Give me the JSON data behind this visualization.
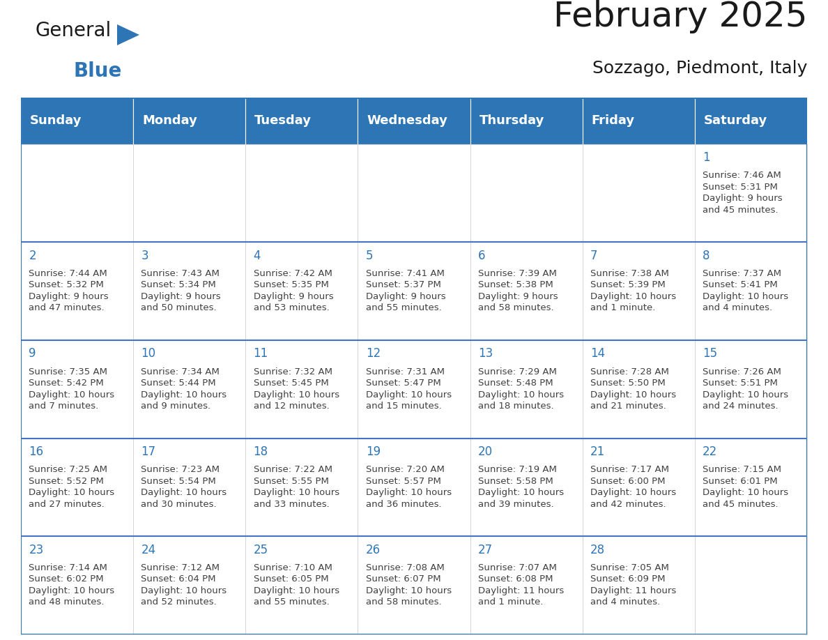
{
  "title": "February 2025",
  "subtitle": "Sozzago, Piedmont, Italy",
  "header_color": "#2E75B6",
  "header_text_color": "#FFFFFF",
  "cell_bg_color": "#FFFFFF",
  "cell_alt_bg_color": "#F2F2F2",
  "border_color": "#2E75B6",
  "row_divider_color": "#4472C4",
  "day_number_color": "#2E75B6",
  "cell_text_color": "#404040",
  "days_of_week": [
    "Sunday",
    "Monday",
    "Tuesday",
    "Wednesday",
    "Thursday",
    "Friday",
    "Saturday"
  ],
  "weeks": [
    [
      {
        "day": "",
        "info": ""
      },
      {
        "day": "",
        "info": ""
      },
      {
        "day": "",
        "info": ""
      },
      {
        "day": "",
        "info": ""
      },
      {
        "day": "",
        "info": ""
      },
      {
        "day": "",
        "info": ""
      },
      {
        "day": "1",
        "info": "Sunrise: 7:46 AM\nSunset: 5:31 PM\nDaylight: 9 hours\nand 45 minutes."
      }
    ],
    [
      {
        "day": "2",
        "info": "Sunrise: 7:44 AM\nSunset: 5:32 PM\nDaylight: 9 hours\nand 47 minutes."
      },
      {
        "day": "3",
        "info": "Sunrise: 7:43 AM\nSunset: 5:34 PM\nDaylight: 9 hours\nand 50 minutes."
      },
      {
        "day": "4",
        "info": "Sunrise: 7:42 AM\nSunset: 5:35 PM\nDaylight: 9 hours\nand 53 minutes."
      },
      {
        "day": "5",
        "info": "Sunrise: 7:41 AM\nSunset: 5:37 PM\nDaylight: 9 hours\nand 55 minutes."
      },
      {
        "day": "6",
        "info": "Sunrise: 7:39 AM\nSunset: 5:38 PM\nDaylight: 9 hours\nand 58 minutes."
      },
      {
        "day": "7",
        "info": "Sunrise: 7:38 AM\nSunset: 5:39 PM\nDaylight: 10 hours\nand 1 minute."
      },
      {
        "day": "8",
        "info": "Sunrise: 7:37 AM\nSunset: 5:41 PM\nDaylight: 10 hours\nand 4 minutes."
      }
    ],
    [
      {
        "day": "9",
        "info": "Sunrise: 7:35 AM\nSunset: 5:42 PM\nDaylight: 10 hours\nand 7 minutes."
      },
      {
        "day": "10",
        "info": "Sunrise: 7:34 AM\nSunset: 5:44 PM\nDaylight: 10 hours\nand 9 minutes."
      },
      {
        "day": "11",
        "info": "Sunrise: 7:32 AM\nSunset: 5:45 PM\nDaylight: 10 hours\nand 12 minutes."
      },
      {
        "day": "12",
        "info": "Sunrise: 7:31 AM\nSunset: 5:47 PM\nDaylight: 10 hours\nand 15 minutes."
      },
      {
        "day": "13",
        "info": "Sunrise: 7:29 AM\nSunset: 5:48 PM\nDaylight: 10 hours\nand 18 minutes."
      },
      {
        "day": "14",
        "info": "Sunrise: 7:28 AM\nSunset: 5:50 PM\nDaylight: 10 hours\nand 21 minutes."
      },
      {
        "day": "15",
        "info": "Sunrise: 7:26 AM\nSunset: 5:51 PM\nDaylight: 10 hours\nand 24 minutes."
      }
    ],
    [
      {
        "day": "16",
        "info": "Sunrise: 7:25 AM\nSunset: 5:52 PM\nDaylight: 10 hours\nand 27 minutes."
      },
      {
        "day": "17",
        "info": "Sunrise: 7:23 AM\nSunset: 5:54 PM\nDaylight: 10 hours\nand 30 minutes."
      },
      {
        "day": "18",
        "info": "Sunrise: 7:22 AM\nSunset: 5:55 PM\nDaylight: 10 hours\nand 33 minutes."
      },
      {
        "day": "19",
        "info": "Sunrise: 7:20 AM\nSunset: 5:57 PM\nDaylight: 10 hours\nand 36 minutes."
      },
      {
        "day": "20",
        "info": "Sunrise: 7:19 AM\nSunset: 5:58 PM\nDaylight: 10 hours\nand 39 minutes."
      },
      {
        "day": "21",
        "info": "Sunrise: 7:17 AM\nSunset: 6:00 PM\nDaylight: 10 hours\nand 42 minutes."
      },
      {
        "day": "22",
        "info": "Sunrise: 7:15 AM\nSunset: 6:01 PM\nDaylight: 10 hours\nand 45 minutes."
      }
    ],
    [
      {
        "day": "23",
        "info": "Sunrise: 7:14 AM\nSunset: 6:02 PM\nDaylight: 10 hours\nand 48 minutes."
      },
      {
        "day": "24",
        "info": "Sunrise: 7:12 AM\nSunset: 6:04 PM\nDaylight: 10 hours\nand 52 minutes."
      },
      {
        "day": "25",
        "info": "Sunrise: 7:10 AM\nSunset: 6:05 PM\nDaylight: 10 hours\nand 55 minutes."
      },
      {
        "day": "26",
        "info": "Sunrise: 7:08 AM\nSunset: 6:07 PM\nDaylight: 10 hours\nand 58 minutes."
      },
      {
        "day": "27",
        "info": "Sunrise: 7:07 AM\nSunset: 6:08 PM\nDaylight: 11 hours\nand 1 minute."
      },
      {
        "day": "28",
        "info": "Sunrise: 7:05 AM\nSunset: 6:09 PM\nDaylight: 11 hours\nand 4 minutes."
      },
      {
        "day": "",
        "info": ""
      }
    ]
  ],
  "logo_text_general": "General",
  "logo_text_blue": "Blue",
  "logo_general_color": "#1a1a1a",
  "logo_blue_color": "#2E75B6",
  "title_fontsize": 36,
  "subtitle_fontsize": 18,
  "header_fontsize": 13,
  "day_num_fontsize": 12,
  "cell_text_fontsize": 9.5
}
